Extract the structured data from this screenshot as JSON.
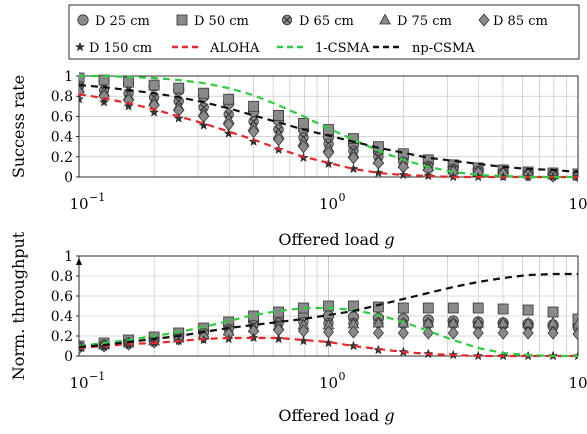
{
  "legend": {
    "entries": [
      {
        "label": "D 25 cm",
        "marker": "circle"
      },
      {
        "label": "D 50 cm",
        "marker": "square"
      },
      {
        "label": "D 65 cm",
        "marker": "otimes"
      },
      {
        "label": "D 75 cm",
        "marker": "triangle"
      },
      {
        "label": "D 85 cm",
        "marker": "diamond"
      },
      {
        "label": "D 150 cm",
        "marker": "star"
      },
      {
        "label": "ALOHA",
        "line_color": "#e8262a",
        "dash": "dashed"
      },
      {
        "label": "1-CSMA",
        "line_color": "#2ecc40",
        "dash": "dashed"
      },
      {
        "label": "np-CSMA",
        "line_color": "#111111",
        "dash": "dashed"
      }
    ]
  },
  "colors": {
    "marker_fill": "#8a8a8a",
    "marker_stroke": "#333333",
    "aloha": "#e8262a",
    "csma1": "#2ecc40",
    "npcsma": "#111111"
  },
  "chart_data": [
    {
      "type": "line",
      "xscale": "log",
      "xlim": [
        0.1,
        10
      ],
      "ylim": [
        0,
        1
      ],
      "xticks": [
        0.1,
        1,
        10
      ],
      "xtick_labels": [
        "10",
        "10",
        "10"
      ],
      "xtick_exponents": [
        "−1",
        "0",
        "1"
      ],
      "yticks": [
        0,
        0.2,
        0.4,
        0.6,
        0.8,
        1
      ],
      "ytick_labels": [
        "0",
        "0.2",
        "0.4",
        "0.6",
        "0.8",
        "1"
      ],
      "xlabel": "Offered load",
      "xlabel_var": "g",
      "ylabel": "Success rate",
      "grid": true,
      "x": [
        0.1,
        0.126,
        0.158,
        0.2,
        0.251,
        0.316,
        0.398,
        0.501,
        0.631,
        0.794,
        1.0,
        1.259,
        1.585,
        1.995,
        2.512,
        3.162,
        3.981,
        5.012,
        6.31,
        7.943,
        10.0
      ],
      "series": [
        {
          "name": "D 25 cm",
          "marker": "circle",
          "values": [
            0.98,
            0.95,
            0.93,
            0.9,
            0.86,
            0.8,
            0.73,
            0.65,
            0.56,
            0.47,
            0.4,
            0.32,
            0.25,
            0.19,
            0.14,
            0.1,
            0.07,
            0.05,
            0.04,
            0.03,
            0.02
          ]
        },
        {
          "name": "D 50 cm",
          "marker": "square",
          "values": [
            0.98,
            0.96,
            0.94,
            0.91,
            0.88,
            0.83,
            0.77,
            0.7,
            0.61,
            0.53,
            0.47,
            0.38,
            0.3,
            0.23,
            0.17,
            0.12,
            0.09,
            0.07,
            0.05,
            0.04,
            0.03
          ]
        },
        {
          "name": "D 65 cm",
          "marker": "otimes",
          "values": [
            0.9,
            0.86,
            0.83,
            0.79,
            0.75,
            0.69,
            0.62,
            0.55,
            0.47,
            0.39,
            0.33,
            0.26,
            0.2,
            0.15,
            0.11,
            0.08,
            0.06,
            0.04,
            0.03,
            0.02,
            0.02
          ]
        },
        {
          "name": "D 75 cm",
          "marker": "triangle",
          "values": [
            0.88,
            0.84,
            0.8,
            0.75,
            0.7,
            0.64,
            0.57,
            0.5,
            0.42,
            0.35,
            0.29,
            0.23,
            0.17,
            0.13,
            0.1,
            0.07,
            0.05,
            0.04,
            0.03,
            0.02,
            0.01
          ]
        },
        {
          "name": "D 85 cm",
          "marker": "diamond",
          "values": [
            0.84,
            0.8,
            0.76,
            0.71,
            0.66,
            0.6,
            0.52,
            0.45,
            0.37,
            0.3,
            0.24,
            0.19,
            0.14,
            0.1,
            0.07,
            0.05,
            0.04,
            0.03,
            0.02,
            0.01,
            0.01
          ]
        },
        {
          "name": "D 150 cm",
          "marker": "star",
          "values": [
            0.77,
            0.74,
            0.7,
            0.64,
            0.58,
            0.51,
            0.43,
            0.35,
            0.27,
            0.19,
            0.13,
            0.08,
            0.04,
            0.02,
            0.01,
            0.0,
            0.0,
            0.0,
            0.0,
            0.0,
            0.0
          ]
        },
        {
          "name": "ALOHA",
          "style": "dashed",
          "color": "#e8262a",
          "values": [
            0.82,
            0.78,
            0.73,
            0.67,
            0.6,
            0.53,
            0.45,
            0.37,
            0.28,
            0.2,
            0.14,
            0.08,
            0.04,
            0.02,
            0.01,
            0.0,
            0.0,
            0.0,
            0.0,
            0.0,
            0.0
          ]
        },
        {
          "name": "1-CSMA",
          "style": "dashed",
          "color": "#2ecc40",
          "values": [
            1.0,
            1.0,
            0.99,
            0.98,
            0.96,
            0.93,
            0.88,
            0.81,
            0.71,
            0.6,
            0.48,
            0.37,
            0.26,
            0.17,
            0.1,
            0.05,
            0.02,
            0.01,
            0.0,
            0.0,
            0.0
          ]
        },
        {
          "name": "np-CSMA",
          "style": "dashed",
          "color": "#111111",
          "values": [
            0.91,
            0.89,
            0.86,
            0.83,
            0.79,
            0.74,
            0.68,
            0.61,
            0.54,
            0.47,
            0.41,
            0.35,
            0.29,
            0.24,
            0.19,
            0.16,
            0.13,
            0.1,
            0.08,
            0.07,
            0.05
          ]
        }
      ]
    },
    {
      "type": "line",
      "xscale": "log",
      "xlim": [
        0.1,
        10
      ],
      "ylim": [
        0,
        1
      ],
      "xticks": [
        0.1,
        1,
        10
      ],
      "xtick_labels": [
        "10",
        "10",
        "10"
      ],
      "xtick_exponents": [
        "−1",
        "0",
        "1"
      ],
      "yticks": [
        0,
        0.2,
        0.4,
        0.6,
        0.8,
        1
      ],
      "ytick_labels": [
        "0",
        "0.2",
        "0.4",
        "0.6",
        "0.8",
        "1"
      ],
      "xlabel": "Offered load",
      "xlabel_var": "g",
      "ylabel": "Norm. throughput",
      "grid": true,
      "x": [
        0.1,
        0.126,
        0.158,
        0.2,
        0.251,
        0.316,
        0.398,
        0.501,
        0.631,
        0.794,
        1.0,
        1.259,
        1.585,
        1.995,
        2.512,
        3.162,
        3.981,
        5.012,
        6.31,
        7.943,
        10.0
      ],
      "series": [
        {
          "name": "D 25 cm",
          "marker": "circle",
          "values": [
            0.1,
            0.12,
            0.15,
            0.18,
            0.22,
            0.26,
            0.31,
            0.35,
            0.38,
            0.4,
            0.4,
            0.39,
            0.38,
            0.37,
            0.36,
            0.35,
            0.34,
            0.33,
            0.32,
            0.31,
            0.3
          ]
        },
        {
          "name": "D 50 cm",
          "marker": "square",
          "values": [
            0.1,
            0.13,
            0.16,
            0.19,
            0.23,
            0.28,
            0.34,
            0.4,
            0.44,
            0.48,
            0.5,
            0.5,
            0.49,
            0.48,
            0.48,
            0.48,
            0.48,
            0.47,
            0.46,
            0.44,
            0.37
          ]
        },
        {
          "name": "D 65 cm",
          "marker": "otimes",
          "values": [
            0.09,
            0.11,
            0.13,
            0.16,
            0.19,
            0.23,
            0.27,
            0.31,
            0.33,
            0.34,
            0.33,
            0.33,
            0.33,
            0.32,
            0.32,
            0.32,
            0.31,
            0.31,
            0.3,
            0.29,
            0.28
          ]
        },
        {
          "name": "D 75 cm",
          "marker": "triangle",
          "values": [
            0.09,
            0.11,
            0.13,
            0.15,
            0.18,
            0.21,
            0.25,
            0.28,
            0.3,
            0.31,
            0.31,
            0.32,
            0.33,
            0.33,
            0.33,
            0.33,
            0.33,
            0.33,
            0.33,
            0.33,
            0.32
          ]
        },
        {
          "name": "D 85 cm",
          "marker": "diamond",
          "values": [
            0.08,
            0.1,
            0.12,
            0.14,
            0.17,
            0.19,
            0.22,
            0.25,
            0.26,
            0.25,
            0.24,
            0.24,
            0.23,
            0.23,
            0.23,
            0.23,
            0.23,
            0.23,
            0.23,
            0.23,
            0.22
          ]
        },
        {
          "name": "D 150 cm",
          "marker": "star",
          "values": [
            0.08,
            0.09,
            0.11,
            0.13,
            0.15,
            0.16,
            0.17,
            0.18,
            0.17,
            0.15,
            0.13,
            0.1,
            0.06,
            0.04,
            0.02,
            0.01,
            0.0,
            0.0,
            0.0,
            0.0,
            0.0
          ]
        },
        {
          "name": "ALOHA",
          "style": "dashed",
          "color": "#e8262a",
          "values": [
            0.08,
            0.1,
            0.12,
            0.13,
            0.15,
            0.17,
            0.18,
            0.18,
            0.18,
            0.16,
            0.14,
            0.1,
            0.07,
            0.04,
            0.02,
            0.01,
            0.0,
            0.0,
            0.0,
            0.0,
            0.0
          ]
        },
        {
          "name": "1-CSMA",
          "style": "dashed",
          "color": "#2ecc40",
          "values": [
            0.1,
            0.13,
            0.16,
            0.2,
            0.24,
            0.29,
            0.35,
            0.41,
            0.45,
            0.48,
            0.48,
            0.46,
            0.41,
            0.34,
            0.25,
            0.16,
            0.08,
            0.03,
            0.01,
            0.0,
            0.0
          ]
        },
        {
          "name": "np-CSMA",
          "style": "dashed",
          "color": "#111111",
          "values": [
            0.09,
            0.11,
            0.14,
            0.17,
            0.2,
            0.24,
            0.28,
            0.31,
            0.34,
            0.37,
            0.41,
            0.45,
            0.51,
            0.57,
            0.63,
            0.69,
            0.74,
            0.78,
            0.81,
            0.82,
            0.82
          ]
        }
      ]
    }
  ]
}
